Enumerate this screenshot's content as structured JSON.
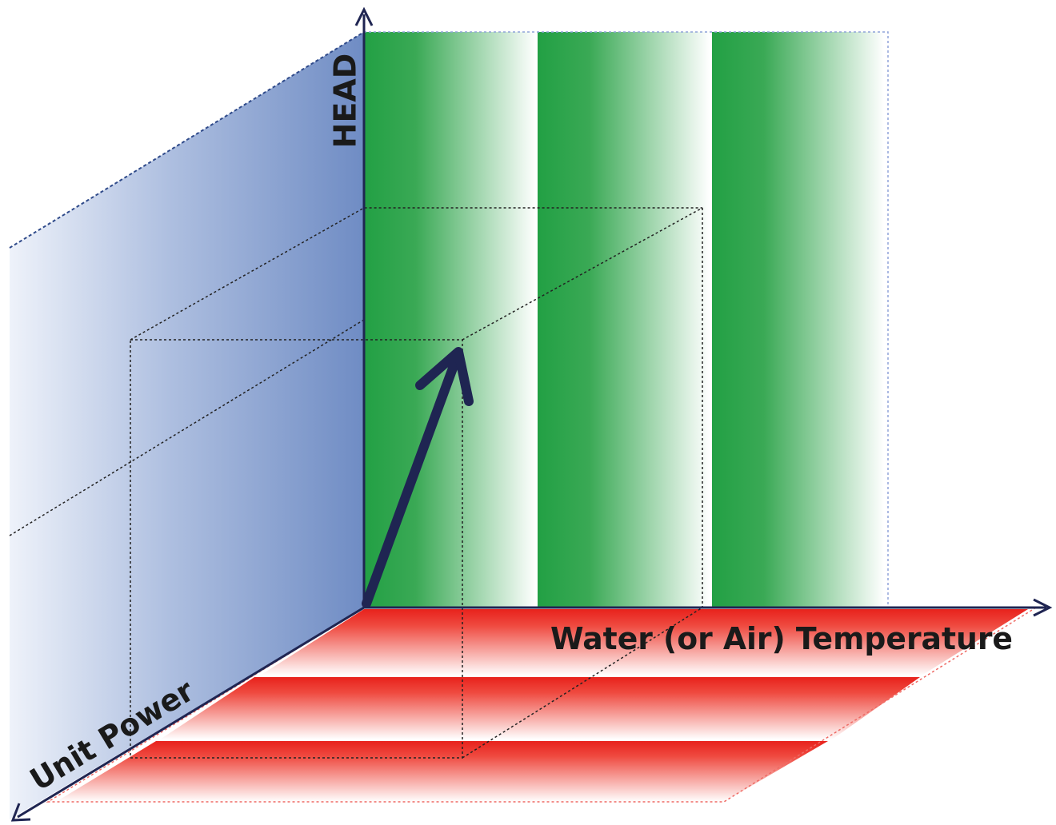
{
  "labels": {
    "vertical_axis": "HEAD",
    "horizontal_axis": "Water (or Air) Temperature",
    "depth_axis": "Unit Power"
  },
  "colors": {
    "wall_blue": "#6f8cc4",
    "band_green": "#2aa04a",
    "band_red": "#e8221c",
    "axis_navy": "#1f2552",
    "box_line": "#222222"
  }
}
